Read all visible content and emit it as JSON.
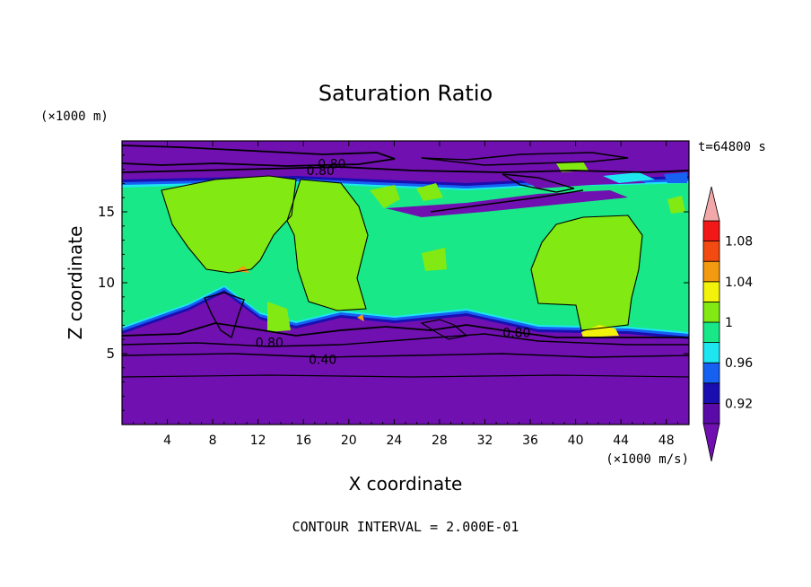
{
  "chart_data": {
    "type": "heatmap",
    "title": "Saturation Ratio",
    "xlabel": "X coordinate",
    "ylabel": "Z coordinate",
    "x_unit": "(×1000 m/s)",
    "y_unit": "(×1000 m)",
    "time_label": "t=64800 s",
    "footer": "CONTOUR INTERVAL = 2.000E-01",
    "xlim": [
      0,
      50
    ],
    "ylim": [
      0,
      20
    ],
    "x_ticks": [
      4,
      8,
      12,
      16,
      20,
      24,
      28,
      32,
      36,
      40,
      44,
      48
    ],
    "y_ticks": [
      5,
      10,
      15
    ],
    "colorbar": {
      "levels": [
        0.9,
        0.92,
        0.94,
        0.96,
        0.98,
        1.0,
        1.02,
        1.04,
        1.06,
        1.08,
        1.1
      ],
      "labels": [
        {
          "value": 0.92,
          "text": "0.92"
        },
        {
          "value": 0.96,
          "text": "0.96"
        },
        {
          "value": 1.0,
          "text": "1"
        },
        {
          "value": 1.04,
          "text": "1.04"
        },
        {
          "value": 1.08,
          "text": "1.08"
        }
      ],
      "colors": [
        "#5a0aa8",
        "#1a0eb0",
        "#1660f2",
        "#1ee6f0",
        "#18e888",
        "#82ea12",
        "#f2f20a",
        "#f49a10",
        "#f24a10",
        "#f21818"
      ],
      "under_color": "#7010b0",
      "over_color": "#f2a8a8"
    },
    "contour_labels": [
      {
        "text": "0.80",
        "x": 17.5,
        "z": 17.9
      },
      {
        "text": "0.80",
        "x": 18.5,
        "z": 18.4
      },
      {
        "text": "0.80",
        "x": 13.0,
        "z": 5.8
      },
      {
        "text": "0.80",
        "x": 34.8,
        "z": 6.5
      },
      {
        "text": "0.40",
        "x": 17.7,
        "z": 4.6
      }
    ]
  }
}
